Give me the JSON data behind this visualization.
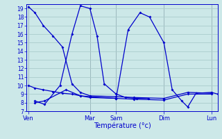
{
  "xlabel": "Température (°c)",
  "bg_color": "#cce8e8",
  "grid_color": "#aacccc",
  "line_color": "#0000cc",
  "vline_color": "#555577",
  "ylim": [
    7,
    19.5
  ],
  "yticks": [
    7,
    8,
    9,
    10,
    11,
    12,
    13,
    14,
    15,
    16,
    17,
    18,
    19
  ],
  "xlim": [
    0,
    16
  ],
  "day_labels": [
    "Ven",
    "Mar",
    "Sam",
    "Dim",
    "Lun"
  ],
  "day_positions": [
    0.15,
    5.3,
    7.5,
    11.5,
    15.5
  ],
  "vline_positions": [
    0.15,
    5.3,
    7.5,
    11.5,
    15.5
  ],
  "series_x": [
    [
      0.15,
      0.7,
      1.4,
      2.2,
      3.0,
      3.8,
      4.5,
      5.3,
      7.5,
      9.0,
      11.5,
      13.5,
      15.5
    ],
    [
      0.15,
      0.7,
      1.4,
      2.2,
      3.0,
      3.8,
      4.5,
      5.3,
      7.5,
      9.0,
      11.5,
      13.5,
      15.5
    ],
    [
      0.7,
      1.5,
      2.8,
      3.8,
      4.5,
      5.3,
      5.9,
      6.5,
      7.5,
      8.3,
      9.2,
      10.2
    ],
    [
      0.7,
      1.5,
      3.3,
      4.5,
      5.3,
      7.5,
      8.5,
      9.5,
      10.3,
      11.5,
      12.2,
      13.0,
      13.5,
      14.2,
      15.5,
      16.0
    ]
  ],
  "series_y": [
    [
      19.2,
      18.5,
      17.0,
      15.8,
      14.5,
      10.2,
      9.2,
      8.8,
      8.7,
      8.6,
      8.5,
      9.2,
      9.1
    ],
    [
      10.0,
      9.7,
      9.5,
      9.3,
      9.1,
      9.0,
      8.8,
      8.7,
      8.5,
      8.4,
      8.3,
      9.0,
      9.0
    ],
    [
      8.2,
      7.8,
      10.0,
      16.0,
      19.3,
      19.0,
      15.8,
      10.2,
      9.0,
      8.6,
      8.5,
      8.5
    ],
    [
      8.0,
      8.2,
      9.5,
      8.8,
      8.6,
      8.5,
      16.5,
      18.5,
      18.0,
      15.0,
      9.5,
      8.2,
      7.5,
      9.1,
      9.2,
      9.0
    ]
  ]
}
